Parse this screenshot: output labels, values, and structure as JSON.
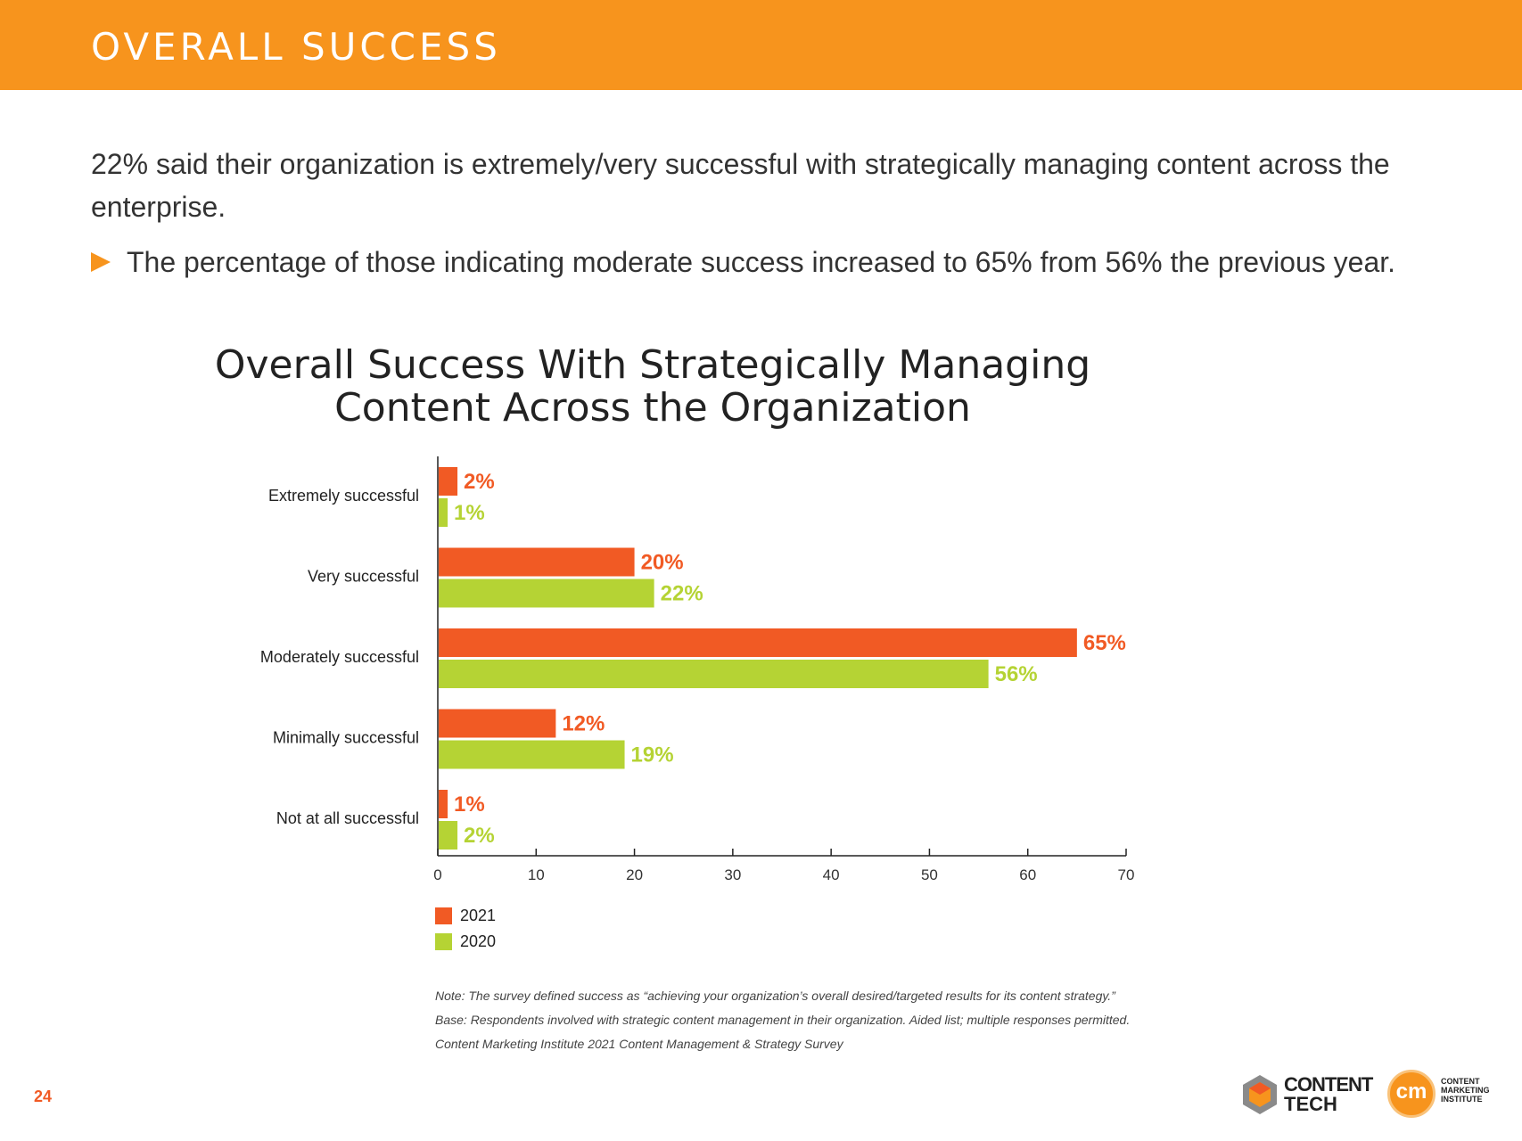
{
  "header": {
    "title": "OVERALL SUCCESS"
  },
  "intro": {
    "text": "22% said their organization is extremely/very successful with strategically managing content across the enterprise.",
    "bullet": "The percentage of those indicating moderate success increased to 65% from 56% the previous year."
  },
  "chart_data": {
    "type": "bar",
    "orientation": "horizontal",
    "title": "Overall Success With Strategically Managing Content Across the Organization",
    "title_lines": [
      "Overall Success With Strategically Managing",
      "Content Across the Organization"
    ],
    "categories": [
      "Extremely successful",
      "Very successful",
      "Moderately successful",
      "Minimally successful",
      "Not at all successful"
    ],
    "series": [
      {
        "name": "2021",
        "color": "#f15a24",
        "values": [
          2,
          20,
          65,
          12,
          1
        ],
        "labels": [
          "2%",
          "20%",
          "65%",
          "12%",
          "1%"
        ]
      },
      {
        "name": "2020",
        "color": "#b5d334",
        "values": [
          1,
          22,
          56,
          19,
          2
        ],
        "labels": [
          "1%",
          "22%",
          "56%",
          "19%",
          "2%"
        ]
      }
    ],
    "xlim": [
      0,
      70
    ],
    "xticks": [
      0,
      10,
      20,
      30,
      40,
      50,
      60,
      70
    ],
    "xlabel": "",
    "ylabel": "",
    "legend_position": "bottom-left",
    "grid": false
  },
  "notes": [
    "Note: The survey defined success as “achieving your organization’s overall desired/targeted results for its content strategy.”",
    "Base: Respondents involved with strategic content management in their organization. Aided list; multiple responses permitted.",
    "Content Marketing Institute 2021 Content Management & Strategy Survey"
  ],
  "footer": {
    "page_number": "24",
    "logo_content_tech": [
      "CONTENT",
      "TECH"
    ],
    "logo_cmi_mark": "cm",
    "logo_cmi_text": [
      "CONTENT",
      "MARKETING",
      "INSTITUTE"
    ]
  }
}
